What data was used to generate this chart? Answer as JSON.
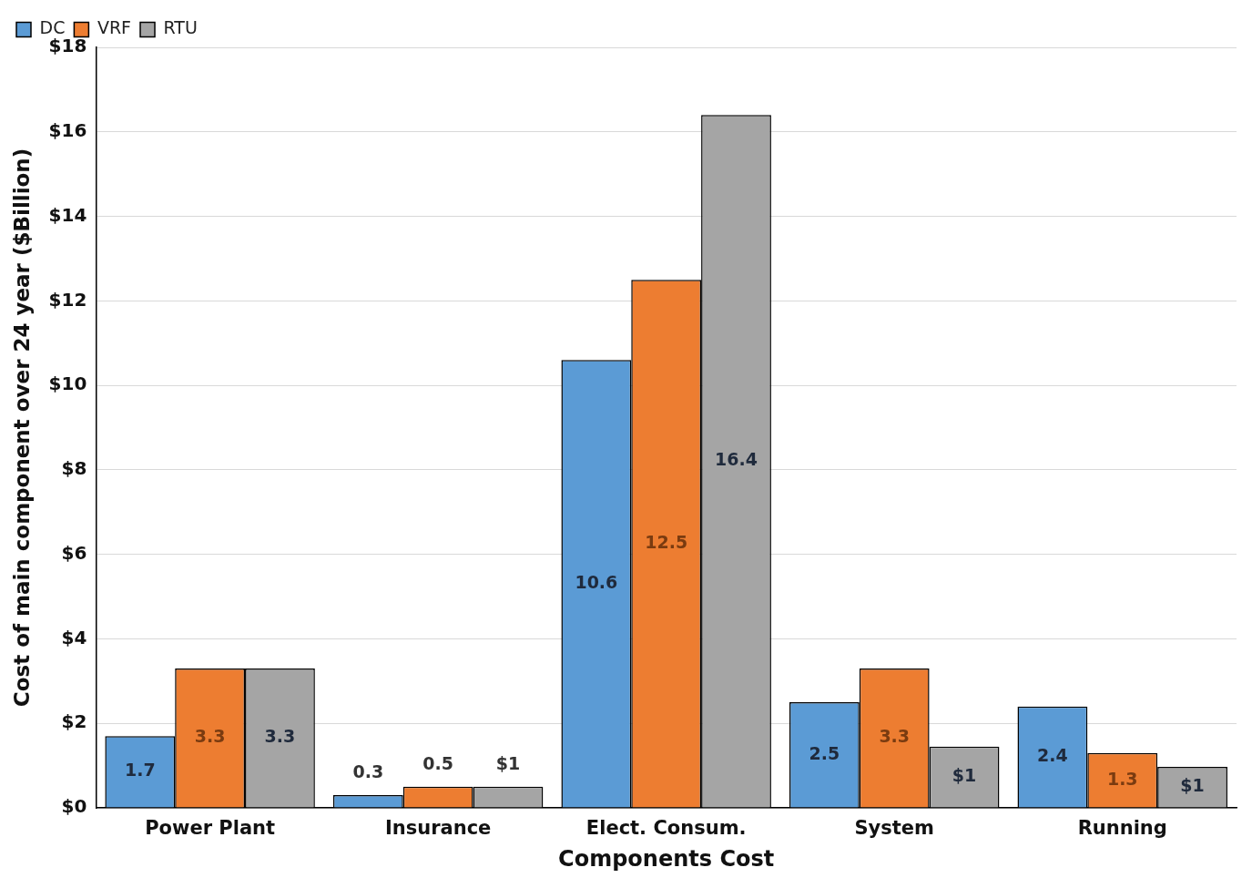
{
  "chart_data": {
    "type": "bar",
    "xlabel": "Components Cost",
    "ylabel": "Cost of main component over 24 year ($Billion)",
    "categories": [
      "Power Plant",
      "Insurance",
      "Elect. Consum.",
      "System",
      "Running"
    ],
    "series": [
      {
        "name": "DC",
        "color": "#5b9bd5",
        "values": [
          1.7,
          0.3,
          10.6,
          2.5,
          2.4
        ],
        "value_labels": [
          "1.7",
          "0.3",
          "10.6",
          "2.5",
          "2.4"
        ]
      },
      {
        "name": "VRF",
        "color": "#ed7d31",
        "values": [
          3.3,
          0.5,
          12.5,
          3.3,
          1.3
        ],
        "value_labels": [
          "3.3",
          "0.5",
          "12.5",
          "3.3",
          "1.3"
        ]
      },
      {
        "name": "RTU",
        "color": "#a5a5a5",
        "values": [
          3.3,
          0.5,
          16.4,
          1.45,
          0.97
        ],
        "value_labels": [
          "3.3",
          "$1",
          "16.4",
          "$1",
          "$1"
        ]
      }
    ],
    "ylim": [
      0,
      18
    ],
    "yticks": [
      {
        "value": 0,
        "label": "$0"
      },
      {
        "value": 2,
        "label": "$2"
      },
      {
        "value": 4,
        "label": "$4"
      },
      {
        "value": 6,
        "label": "$6"
      },
      {
        "value": 8,
        "label": "$8"
      },
      {
        "value": 10,
        "label": "$10"
      },
      {
        "value": 12,
        "label": "$12"
      },
      {
        "value": 14,
        "label": "$14"
      },
      {
        "value": 16,
        "label": "$16"
      },
      {
        "value": 18,
        "label": "$18"
      }
    ],
    "grid": "y",
    "legend": "top left"
  }
}
